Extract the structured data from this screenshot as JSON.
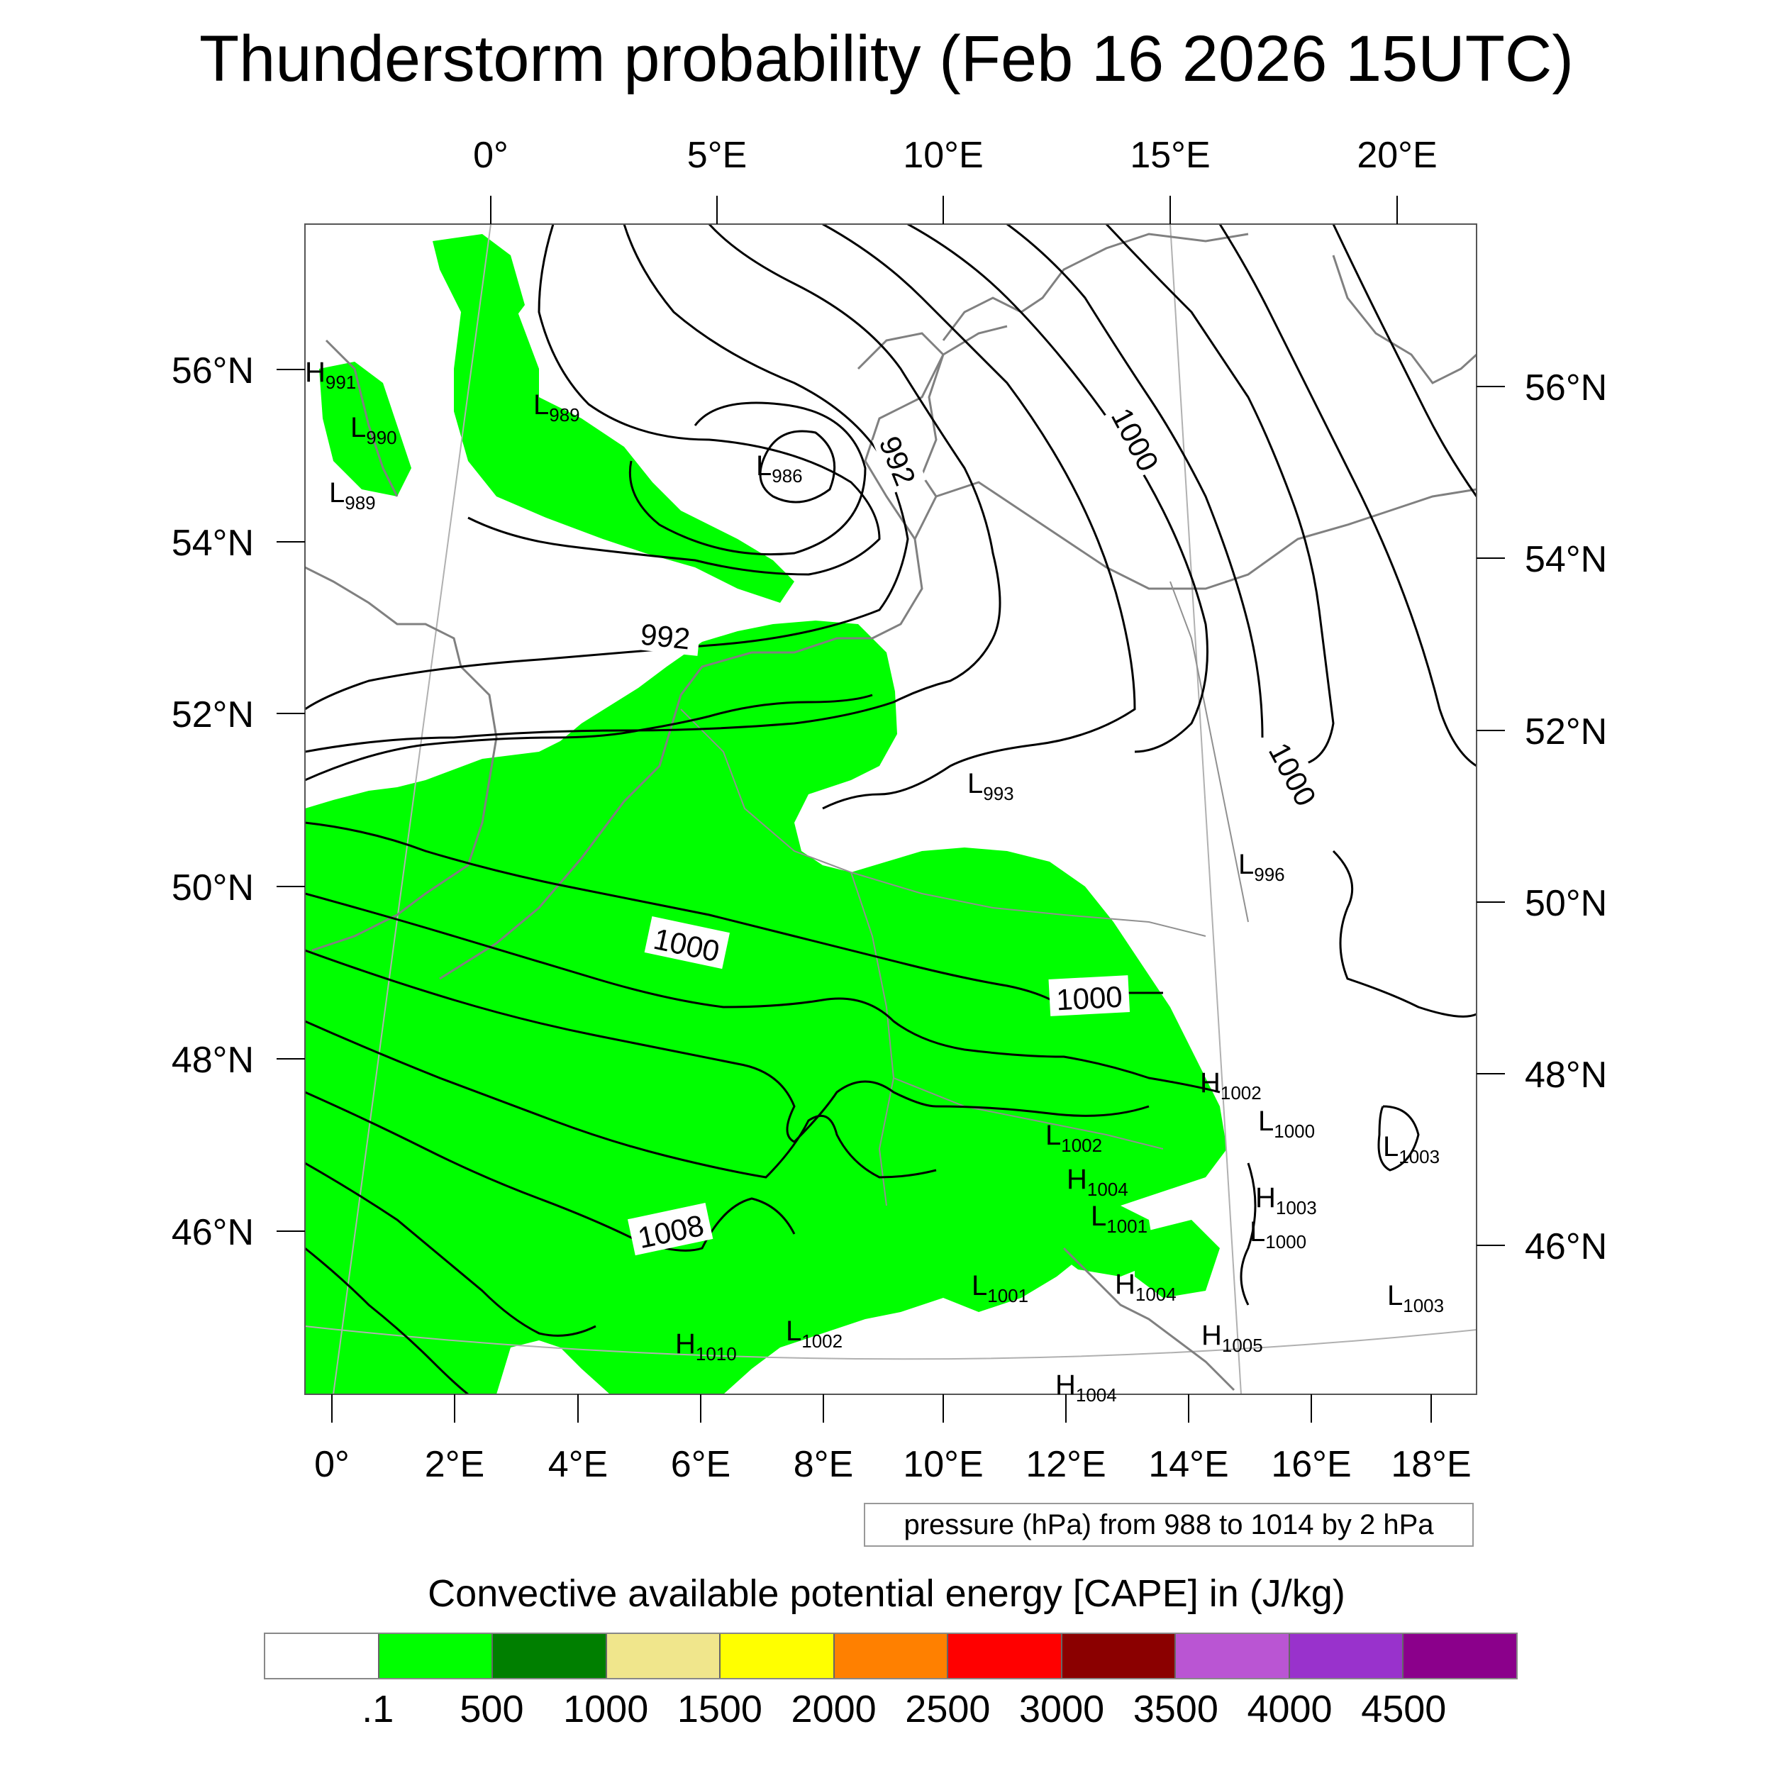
{
  "title": "Thunderstorm probability (Feb 16 2026 15UTC)",
  "map": {
    "region": "Western and Central Europe / North Sea",
    "top_lon_labels": [
      "0°",
      "5°E",
      "10°E",
      "15°E",
      "20°E"
    ],
    "bottom_lon_labels": [
      "0°",
      "2°E",
      "4°E",
      "6°E",
      "8°E",
      "10°E",
      "12°E",
      "14°E",
      "16°E",
      "18°E"
    ],
    "left_lat_labels": [
      "56°N",
      "54°N",
      "52°N",
      "50°N",
      "48°N",
      "46°N"
    ],
    "right_lat_labels": [
      "56°N",
      "54°N",
      "52°N",
      "50°N",
      "48°N",
      "46°N"
    ],
    "colors": {
      "cape_fill": "#00ff00",
      "isobar": "#000000",
      "coastline": "#808080",
      "graticule": "#b0b0b0"
    },
    "pressure_centers": [
      {
        "type": "H",
        "value": "991"
      },
      {
        "type": "L",
        "value": "990"
      },
      {
        "type": "L",
        "value": "989"
      },
      {
        "type": "L",
        "value": "989"
      },
      {
        "type": "L",
        "value": "986"
      },
      {
        "type": "L",
        "value": "993"
      },
      {
        "type": "L",
        "value": "996"
      },
      {
        "type": "H",
        "value": "1002"
      },
      {
        "type": "L",
        "value": "1000"
      },
      {
        "type": "L",
        "value": "1002"
      },
      {
        "type": "L",
        "value": "1003"
      },
      {
        "type": "H",
        "value": "1004"
      },
      {
        "type": "H",
        "value": "1003"
      },
      {
        "type": "L",
        "value": "1001"
      },
      {
        "type": "L",
        "value": "1000"
      },
      {
        "type": "L",
        "value": "1001"
      },
      {
        "type": "H",
        "value": "1004"
      },
      {
        "type": "L",
        "value": "1003"
      },
      {
        "type": "H",
        "value": "1010"
      },
      {
        "type": "L",
        "value": "1002"
      },
      {
        "type": "H",
        "value": "1005"
      },
      {
        "type": "H",
        "value": "1004"
      }
    ],
    "isobar_labels": [
      "992",
      "1000",
      "992",
      "1000",
      "1000",
      "1000",
      "1008"
    ]
  },
  "pressure_note": "pressure (hPa) from 988 to 1014 by 2 hPa",
  "cape": {
    "title": "Convective available potential energy [CAPE] in (J/kg)",
    "colors": [
      "#ffffff",
      "#00ff00",
      "#007f00",
      "#f0e68c",
      "#ffff00",
      "#ff8000",
      "#ff0000",
      "#8b0000",
      "#ba55d3",
      "#9932cc",
      "#8b008b"
    ],
    "labels": [
      ".1",
      "500",
      "1000",
      "1500",
      "2000",
      "2500",
      "3000",
      "3500",
      "4000",
      "4500"
    ]
  }
}
